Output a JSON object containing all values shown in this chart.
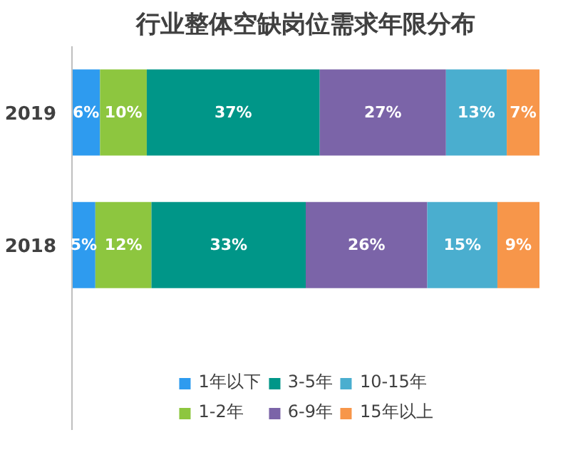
{
  "chart_data": {
    "type": "bar",
    "title": "行业整体空缺岗位需求年限分布",
    "orientation": "horizontal",
    "stacked": true,
    "legend": "bottom",
    "categories": [
      "2019",
      "2018"
    ],
    "series": [
      {
        "name": "1年以下",
        "color": "#2e9bef",
        "values": [
          6,
          5
        ],
        "value_labels": [
          "6%",
          "5%"
        ]
      },
      {
        "name": "1-2年",
        "color": "#8dc63f",
        "values": [
          10,
          12
        ],
        "value_labels": [
          "10%",
          "12%"
        ]
      },
      {
        "name": "3-5年",
        "color": "#009688",
        "values": [
          37,
          33
        ],
        "value_labels": [
          "37%",
          "33%"
        ]
      },
      {
        "name": "6-9年",
        "color": "#7b64a8",
        "values": [
          27,
          26
        ],
        "value_labels": [
          "27%",
          "26%"
        ]
      },
      {
        "name": "10-15年",
        "color": "#4aaecf",
        "values": [
          13,
          15
        ],
        "value_labels": [
          "13%",
          "15%"
        ]
      },
      {
        "name": "15年以上",
        "color": "#f7964a",
        "values": [
          7,
          9
        ],
        "value_labels": [
          "7%",
          "9%"
        ]
      }
    ]
  }
}
